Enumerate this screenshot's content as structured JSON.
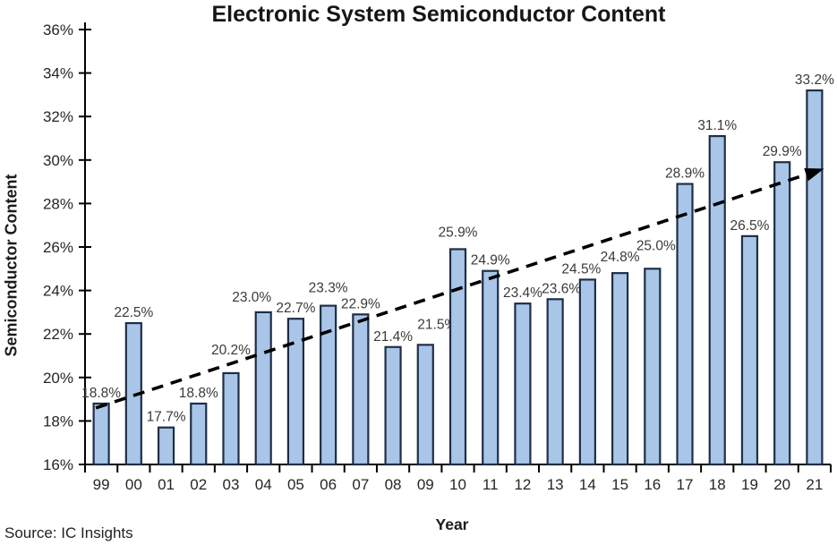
{
  "chart_data": {
    "type": "bar",
    "title": "Electronic System Semiconductor Content",
    "xlabel": "Year",
    "ylabel": "Semiconductor Content",
    "source_note": "Source: IC Insights",
    "categories": [
      "99",
      "00",
      "01",
      "02",
      "03",
      "04",
      "05",
      "06",
      "07",
      "08",
      "09",
      "10",
      "11",
      "12",
      "13",
      "14",
      "15",
      "16",
      "17",
      "18",
      "19",
      "20",
      "21"
    ],
    "values": [
      18.8,
      22.5,
      17.7,
      18.8,
      20.2,
      23.0,
      22.7,
      23.3,
      22.9,
      21.4,
      21.5,
      25.9,
      24.9,
      23.4,
      23.6,
      24.5,
      24.8,
      25.0,
      28.9,
      31.1,
      26.5,
      29.9,
      33.2
    ],
    "data_labels": [
      "18.8%",
      "22.5%",
      "17.7%",
      "18.8%",
      "20.2%",
      "23.0%",
      "22.7%",
      "23.3%",
      "22.9%",
      "21.4%",
      "21.5%",
      "25.9%",
      "24.9%",
      "23.4%",
      "23.6%",
      "24.5%",
      "24.8%",
      "25.0%",
      "28.9%",
      "31.1%",
      "26.5%",
      "29.9%",
      "33.2%"
    ],
    "ylim": [
      16,
      36
    ],
    "ytick_step": 2,
    "ytick_labels": [
      "16%",
      "18%",
      "20%",
      "22%",
      "24%",
      "26%",
      "28%",
      "30%",
      "32%",
      "34%",
      "36%"
    ],
    "grid": false,
    "legend": false,
    "colors": {
      "bar_fill": "#a9c6e8",
      "bar_stroke": "#1e2e47",
      "axis": "#000000",
      "tick_text": "#262626",
      "data_label_text": "#3a3a3a",
      "trendline": "#000000"
    },
    "trendline": {
      "style": "dashed",
      "arrow_end": true,
      "from": {
        "category": "99",
        "value": 18.6
      },
      "to": {
        "category": "21",
        "value": 29.5
      }
    },
    "label_offsets": {
      "4": {
        "dx": 0,
        "dy": -14
      },
      "5": {
        "dx": -13,
        "dy": -5
      },
      "7": {
        "dx": 0,
        "dy": -8
      },
      "10": {
        "dx": 13,
        "dy": -11
      },
      "11": {
        "dx": 0,
        "dy": -7
      },
      "14": {
        "dx": 7,
        "dy": 0
      },
      "15": {
        "dx": -7,
        "dy": 0
      },
      "16": {
        "dx": 0,
        "dy": -6
      },
      "17": {
        "dx": 4,
        "dy": -14
      }
    }
  }
}
